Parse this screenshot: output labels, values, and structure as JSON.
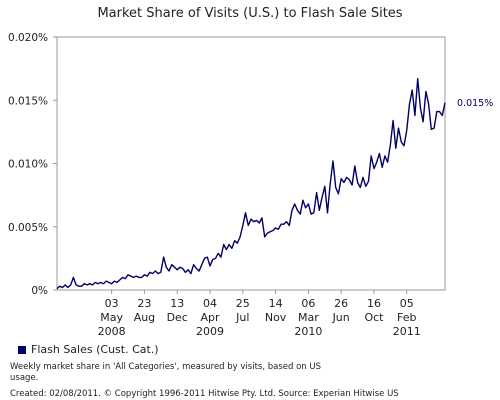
{
  "chart_data": {
    "type": "line",
    "title": "Market Share of Visits (U.S.) to Flash Sale Sites",
    "ylim": [
      0,
      0.02
    ],
    "yticks": [
      {
        "value": 0.0,
        "label": "0%"
      },
      {
        "value": 0.005,
        "label": "0.005%"
      },
      {
        "value": 0.01,
        "label": "0.010%"
      },
      {
        "value": 0.015,
        "label": "0.015%"
      },
      {
        "value": 0.02,
        "label": "0.020%"
      }
    ],
    "xticks": [
      {
        "value": 20,
        "line1": "03",
        "line2": "May",
        "line3": "2008"
      },
      {
        "value": 32,
        "line1": "23",
        "line2": "Aug",
        "line3": ""
      },
      {
        "value": 44,
        "line1": "13",
        "line2": "Dec",
        "line3": ""
      },
      {
        "value": 56,
        "line1": "04",
        "line2": "Apr",
        "line3": "2009"
      },
      {
        "value": 68,
        "line1": "25",
        "line2": "Jul",
        "line3": ""
      },
      {
        "value": 80,
        "line1": "14",
        "line2": "Nov",
        "line3": ""
      },
      {
        "value": 92,
        "line1": "06",
        "line2": "Mar",
        "line3": "2010"
      },
      {
        "value": 104,
        "line1": "26",
        "line2": "Jun",
        "line3": ""
      },
      {
        "value": 116,
        "line1": "16",
        "line2": "Oct",
        "line3": ""
      },
      {
        "value": 128,
        "line1": "05",
        "line2": "Feb",
        "line3": "2011"
      }
    ],
    "grid": false,
    "end_label": "0.015%",
    "color": "#000066",
    "series": [
      {
        "name": "Flash Sales (Cust. Cat.)",
        "values": [
          0.0001,
          0.0003,
          0.0002,
          0.0004,
          0.0002,
          0.0004,
          0.001,
          0.0004,
          0.0003,
          0.0003,
          0.0005,
          0.0004,
          0.0005,
          0.0004,
          0.0006,
          0.0005,
          0.0006,
          0.0005,
          0.0007,
          0.0006,
          0.0005,
          0.0007,
          0.0006,
          0.0008,
          0.001,
          0.0009,
          0.0012,
          0.0011,
          0.001,
          0.0011,
          0.001,
          0.001,
          0.0012,
          0.0011,
          0.0014,
          0.0013,
          0.0015,
          0.0013,
          0.0014,
          0.0026,
          0.0018,
          0.0015,
          0.002,
          0.0018,
          0.0016,
          0.0018,
          0.0017,
          0.0014,
          0.0016,
          0.0013,
          0.002,
          0.0017,
          0.0015,
          0.002,
          0.0025,
          0.0026,
          0.0019,
          0.0024,
          0.0025,
          0.0029,
          0.0026,
          0.0036,
          0.0032,
          0.0036,
          0.0033,
          0.0039,
          0.0037,
          0.0042,
          0.0051,
          0.0061,
          0.0051,
          0.0056,
          0.0054,
          0.0055,
          0.0053,
          0.0057,
          0.0042,
          0.0045,
          0.0046,
          0.0047,
          0.0049,
          0.0048,
          0.0052,
          0.0052,
          0.0054,
          0.0051,
          0.0063,
          0.0068,
          0.0063,
          0.006,
          0.0071,
          0.0065,
          0.0068,
          0.006,
          0.0061,
          0.0077,
          0.0063,
          0.0073,
          0.0082,
          0.0061,
          0.0084,
          0.0102,
          0.0081,
          0.0076,
          0.0088,
          0.0085,
          0.0089,
          0.0087,
          0.0083,
          0.0098,
          0.0085,
          0.0081,
          0.0089,
          0.0082,
          0.0086,
          0.0106,
          0.0096,
          0.0101,
          0.0108,
          0.0097,
          0.0106,
          0.0101,
          0.0115,
          0.0134,
          0.0112,
          0.0128,
          0.0117,
          0.0114,
          0.0126,
          0.0147,
          0.0158,
          0.0138,
          0.0167,
          0.0144,
          0.0133,
          0.0157,
          0.0147,
          0.0127,
          0.0128,
          0.0141,
          0.0141,
          0.0138,
          0.0148
        ]
      }
    ]
  },
  "legend": {
    "label": "Flash Sales (Cust. Cat.)"
  },
  "footnotes": {
    "line1": "Weekly market share in 'All Categories', measured by visits, based on US usage.",
    "line2": "Created: 02/08/2011. © Copyright 1996-2011 Hitwise Pty. Ltd.   Source: Experian Hitwise US"
  }
}
